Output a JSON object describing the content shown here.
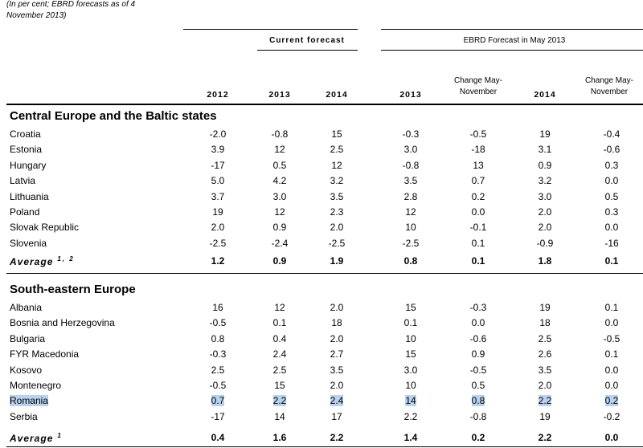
{
  "note_line1": "(In per cent; EBRD forecasts as of 4",
  "note_line2": "November 2013)",
  "group_current": "Current forecast",
  "group_ebrd": "EBRD Forecast in May 2013",
  "columns": [
    "2012",
    "2013",
    "2014",
    "2013",
    "Change May-November",
    "2014",
    "Change May-November"
  ],
  "sections": [
    {
      "title": "Central Europe and the Baltic states",
      "rows": [
        {
          "name": "Croatia",
          "values": [
            "-2.0",
            "-0.8",
            "15",
            "-0.3",
            "-0.5",
            "19",
            "-0.4"
          ]
        },
        {
          "name": "Estonia",
          "values": [
            "3.9",
            "12",
            "2.5",
            "3.0",
            "-18",
            "3.1",
            "-0.6"
          ]
        },
        {
          "name": "Hungary",
          "values": [
            "-17",
            "0.5",
            "12",
            "-0.8",
            "13",
            "0.9",
            "0.3"
          ]
        },
        {
          "name": "Latvia",
          "values": [
            "5.0",
            "4.2",
            "3.2",
            "3.5",
            "0.7",
            "3.2",
            "0.0"
          ]
        },
        {
          "name": "Lithuania",
          "values": [
            "3.7",
            "3.0",
            "3.5",
            "2.8",
            "0.2",
            "3.0",
            "0.5"
          ]
        },
        {
          "name": "Poland",
          "values": [
            "19",
            "12",
            "2.3",
            "12",
            "0.0",
            "2.0",
            "0.3"
          ]
        },
        {
          "name": "Slovak Republic",
          "values": [
            "2.0",
            "0.9",
            "2.0",
            "10",
            "-0.1",
            "2.0",
            "0.0"
          ]
        },
        {
          "name": "Slovenia",
          "values": [
            "-2.5",
            "-2.4",
            "-2.5",
            "-2.5",
            "0.1",
            "-0.9",
            "-16"
          ]
        }
      ],
      "average": {
        "name": "Average",
        "sup": "1, 2",
        "values": [
          "1.2",
          "0.9",
          "1.9",
          "0.8",
          "0.1",
          "1.8",
          "0.1"
        ]
      }
    },
    {
      "title": "South-eastern Europe",
      "rows": [
        {
          "name": "Albania",
          "values": [
            "16",
            "12",
            "2.0",
            "15",
            "-0.3",
            "19",
            "0.1"
          ]
        },
        {
          "name": "Bosnia and Herzegovina",
          "values": [
            "-0.5",
            "0.1",
            "18",
            "0.1",
            "0.0",
            "18",
            "0.0"
          ]
        },
        {
          "name": "Bulgaria",
          "values": [
            "0.8",
            "0.4",
            "2.0",
            "10",
            "-0.6",
            "2.5",
            "-0.5"
          ]
        },
        {
          "name": "FYR Macedonia",
          "values": [
            "-0.3",
            "2.4",
            "2.7",
            "15",
            "0.9",
            "2.6",
            "0.1"
          ]
        },
        {
          "name": "Kosovo",
          "values": [
            "2.5",
            "2.5",
            "3.5",
            "3.0",
            "-0.5",
            "3.5",
            "0.0"
          ]
        },
        {
          "name": "Montenegro",
          "values": [
            "-0.5",
            "15",
            "2.0",
            "10",
            "0.5",
            "2.0",
            "0.0"
          ]
        },
        {
          "name": "Romania",
          "highlighted": true,
          "values": [
            "0.7",
            "2.2",
            "2.4",
            "14",
            "0.8",
            "2.2",
            "0.2"
          ]
        },
        {
          "name": "Serbia",
          "values": [
            "-17",
            "14",
            "17",
            "2.2",
            "-0.8",
            "19",
            "-0.2"
          ]
        }
      ],
      "average": {
        "name": "Average",
        "sup": "1",
        "values": [
          "0.4",
          "1.6",
          "2.2",
          "1.4",
          "0.2",
          "2.2",
          "0.0"
        ]
      }
    }
  ],
  "colors": {
    "highlight": "#b9d3ee",
    "text": "#000000"
  }
}
